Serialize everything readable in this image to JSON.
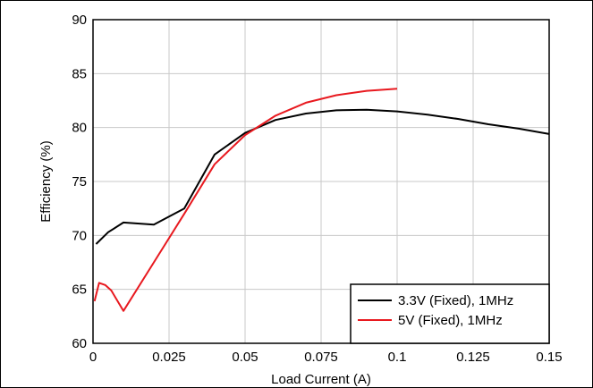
{
  "chart_data": {
    "type": "line",
    "title": "",
    "xlabel": "Load Current (A)",
    "ylabel": "Efficiency (%)",
    "xlim": [
      0,
      0.15
    ],
    "ylim": [
      60,
      90
    ],
    "x_ticks": [
      0,
      0.025,
      0.05,
      0.075,
      0.1,
      0.125,
      0.15
    ],
    "x_tick_labels": [
      "0",
      "0.025",
      "0.05",
      "0.075",
      "0.1",
      "0.125",
      "0.15"
    ],
    "y_ticks": [
      60,
      65,
      70,
      75,
      80,
      85,
      90
    ],
    "y_tick_labels": [
      "60",
      "65",
      "70",
      "75",
      "80",
      "85",
      "90"
    ],
    "grid": true,
    "legend_position": "bottom-right",
    "series": [
      {
        "name": "3.3V (Fixed), 1MHz",
        "color": "#000000",
        "x": [
          0.001,
          0.005,
          0.01,
          0.02,
          0.03,
          0.04,
          0.05,
          0.06,
          0.07,
          0.08,
          0.09,
          0.1,
          0.11,
          0.12,
          0.13,
          0.14,
          0.15
        ],
        "y": [
          69.2,
          70.3,
          71.2,
          71.0,
          72.5,
          77.5,
          79.5,
          80.7,
          81.3,
          81.6,
          81.65,
          81.5,
          81.2,
          80.8,
          80.3,
          79.9,
          79.4
        ]
      },
      {
        "name": "5V (Fixed), 1MHz",
        "color": "#e8191f",
        "x": [
          0.0005,
          0.002,
          0.004,
          0.006,
          0.01,
          0.02,
          0.03,
          0.04,
          0.05,
          0.06,
          0.07,
          0.08,
          0.09,
          0.1
        ],
        "y": [
          63.9,
          65.6,
          65.4,
          64.9,
          63.0,
          67.5,
          72.0,
          76.6,
          79.3,
          81.1,
          82.3,
          83.0,
          83.4,
          83.6
        ]
      }
    ]
  }
}
